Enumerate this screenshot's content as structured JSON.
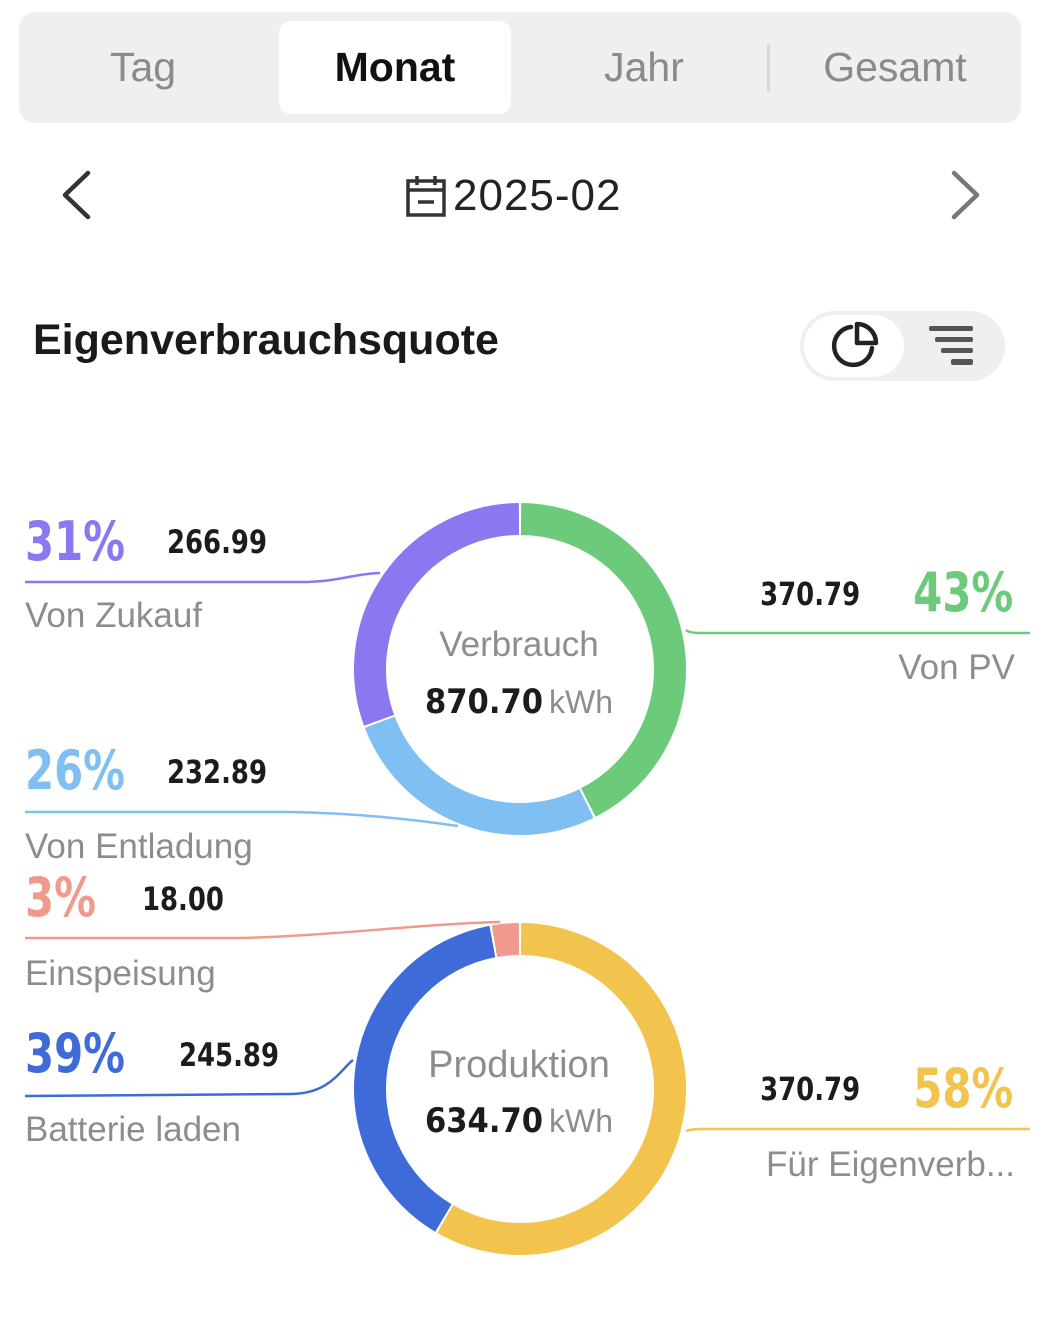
{
  "tabs": [
    {
      "label": "Tag",
      "active": false
    },
    {
      "label": "Monat",
      "active": true
    },
    {
      "label": "Jahr",
      "active": false
    },
    {
      "label": "Gesamt",
      "active": false
    }
  ],
  "date_nav": {
    "date": "2025-02",
    "prev_icon": "chevron-left-icon",
    "next_icon": "chevron-right-icon",
    "calendar_icon": "calendar-icon"
  },
  "section": {
    "title": "Eigenverbrauchsquote",
    "view_toggle": [
      {
        "icon": "pie-chart-icon",
        "active": true
      },
      {
        "icon": "funnel-chart-icon",
        "active": false
      }
    ]
  },
  "consumption": {
    "center_title": "Verbrauch",
    "center_value": "870.70",
    "unit": "kWh",
    "segments": [
      {
        "key": "pv",
        "label": "Von PV",
        "percent": "43%",
        "value": "370.79",
        "color": "#6ccb7a"
      },
      {
        "key": "discharge",
        "label": "Von Entladung",
        "percent": "26%",
        "value": "232.89",
        "color": "#7fbff2"
      },
      {
        "key": "purchase",
        "label": "Von Zukauf",
        "percent": "31%",
        "value": "266.99",
        "color": "#8a78f0"
      }
    ]
  },
  "production": {
    "center_title": "Produktion",
    "center_value": "634.70",
    "unit": "kWh",
    "segments": [
      {
        "key": "self_use",
        "label": "Für Eigenverb...",
        "percent": "58%",
        "value": "370.79",
        "color": "#f3c44d"
      },
      {
        "key": "battery",
        "label": "Batterie laden",
        "percent": "39%",
        "value": "245.89",
        "color": "#3f6bd9"
      },
      {
        "key": "feed_in",
        "label": "Einspeisung",
        "percent": "3%",
        "value": "18.00",
        "color": "#ef9a8c"
      }
    ]
  },
  "chart_data": [
    {
      "type": "pie",
      "title": "Verbrauch",
      "unit": "kWh",
      "total": 870.7,
      "categories": [
        "Von PV",
        "Von Entladung",
        "Von Zukauf"
      ],
      "values": [
        370.79,
        232.89,
        266.99
      ],
      "percents": [
        43,
        26,
        31
      ]
    },
    {
      "type": "pie",
      "title": "Produktion",
      "unit": "kWh",
      "total": 634.7,
      "categories": [
        "Für Eigenverb...",
        "Batterie laden",
        "Einspeisung"
      ],
      "values": [
        370.79,
        245.89,
        18.0
      ],
      "percents": [
        58,
        39,
        3
      ]
    }
  ]
}
